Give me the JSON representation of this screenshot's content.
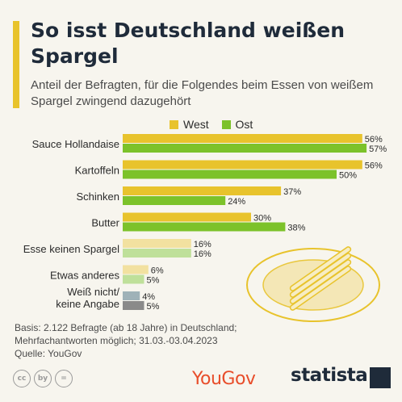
{
  "title": "So isst Deutschland weißen Spargel",
  "subtitle": "Anteil der Befragten, für die Folgendes beim Essen von weißem Spargel zwingend dazugehört",
  "footnote": "Basis: 2.122 Befragte (ab 18 Jahre) in Deutschland; Mehrfachantworten möglich; 31.03.-03.04.2023",
  "source": "Quelle: YouGov",
  "brands": {
    "yougov": "YouGov",
    "statista": "statista"
  },
  "cc_icons": [
    "cc",
    "by",
    "="
  ],
  "colors": {
    "west": "#e8c32c",
    "ost": "#7cc22a",
    "west_light": "#f2e1a0",
    "ost_light": "#bfe09a",
    "west_grey": "#9fb2b8",
    "ost_grey": "#8a8a8a",
    "accent": "#e8c32c"
  },
  "chart_data": {
    "type": "bar",
    "orientation": "horizontal",
    "categories": [
      "Sauce Hollandaise",
      "Kartoffeln",
      "Schinken",
      "Butter",
      "Esse keinen Spargel",
      "Etwas anderes",
      "Weiß nicht/ keine Angabe"
    ],
    "series": [
      {
        "name": "West",
        "values": [
          56,
          56,
          37,
          30,
          16,
          6,
          4
        ]
      },
      {
        "name": "Ost",
        "values": [
          57,
          50,
          24,
          38,
          16,
          5,
          5
        ]
      }
    ],
    "value_suffix": "%",
    "legend": "top-center",
    "grid": false
  }
}
